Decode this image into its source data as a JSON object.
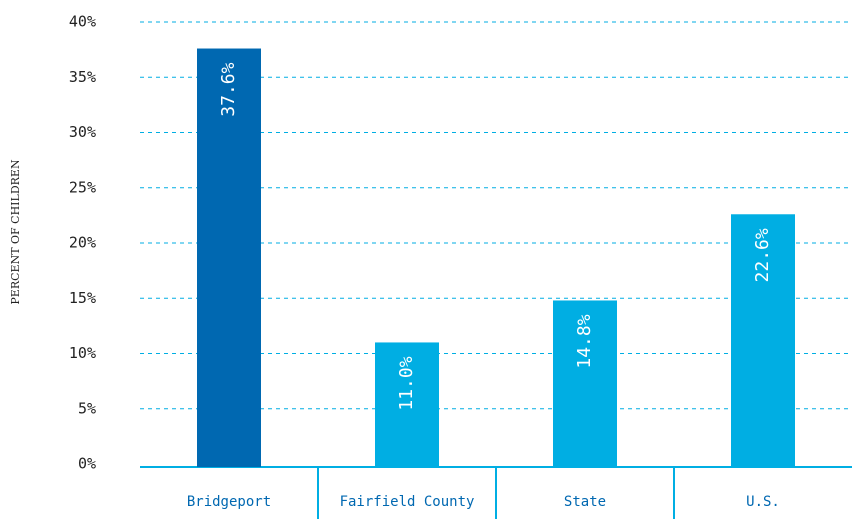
{
  "chart_data": {
    "type": "bar",
    "y_label": "PERCENT OF CHILDREN",
    "categories": [
      "Bridgeport",
      "Fairfield County",
      "State",
      "U.S."
    ],
    "values": [
      37.6,
      11.0,
      14.8,
      22.6
    ],
    "value_labels": [
      "37.6%",
      "11.0%",
      "14.8%",
      "22.6%"
    ],
    "colors": [
      "#0068b1",
      "#00aee3",
      "#00aee3",
      "#00aee3"
    ],
    "ylim": [
      0,
      40
    ],
    "yticks": [
      {
        "value": 0,
        "label": "0%"
      },
      {
        "value": 5,
        "label": "5%"
      },
      {
        "value": 10,
        "label": "10%"
      },
      {
        "value": 15,
        "label": "15%"
      },
      {
        "value": 20,
        "label": "20%"
      },
      {
        "value": 25,
        "label": "25%"
      },
      {
        "value": 30,
        "label": "30%"
      },
      {
        "value": 35,
        "label": "35%"
      },
      {
        "value": 40,
        "label": "40%"
      }
    ],
    "grid": true
  }
}
